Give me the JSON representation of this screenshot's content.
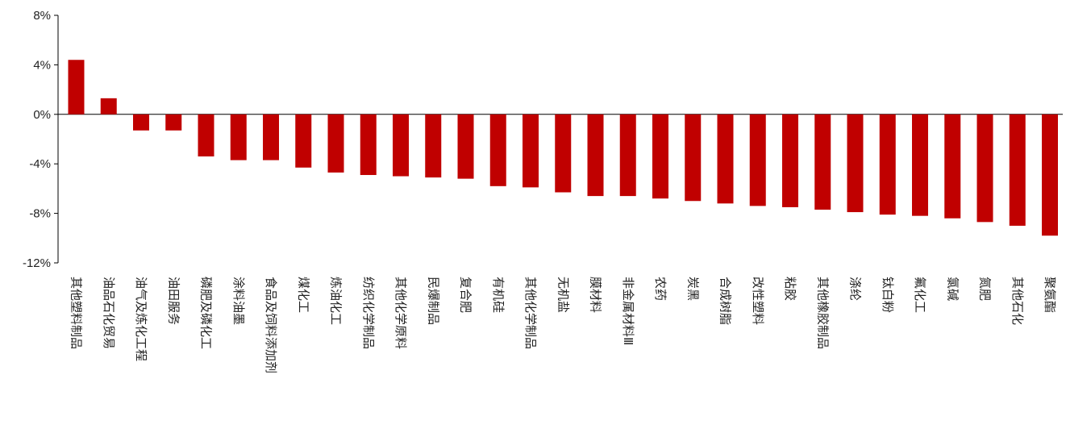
{
  "chart_data": {
    "type": "bar",
    "title": "",
    "xlabel": "",
    "ylabel": "",
    "ylim": [
      -12,
      8
    ],
    "yticks": [
      8,
      4,
      0,
      -4,
      -8,
      -12
    ],
    "ytick_labels": [
      "8%",
      "4%",
      "0%",
      "-4%",
      "-8%",
      "-12%"
    ],
    "bar_color": "#C00000",
    "grid": false,
    "legend": "none",
    "categories": [
      "其他塑料制品",
      "油品石化贸易",
      "油气及炼化工程",
      "油田服务",
      "磷肥及磷化工",
      "涂料油墨",
      "食品及饲料添加剂",
      "煤化工",
      "炼油化工",
      "纺织化学制品",
      "其他化学原料",
      "民爆制品",
      "复合肥",
      "有机硅",
      "其他化学制品",
      "无机盐",
      "膜材料",
      "非金属材料Ⅲ",
      "农药",
      "炭黑",
      "合成树脂",
      "改性塑料",
      "粘胶",
      "其他橡胶制品",
      "涤纶",
      "钛白粉",
      "氟化工",
      "氯碱",
      "氮肥",
      "其他石化",
      "聚氨酯"
    ],
    "values": [
      4.4,
      1.3,
      -1.3,
      -1.3,
      -3.4,
      -3.7,
      -3.7,
      -4.3,
      -4.7,
      -4.9,
      -5.0,
      -5.1,
      -5.2,
      -5.8,
      -5.9,
      -6.3,
      -6.6,
      -6.6,
      -6.8,
      -7.0,
      -7.2,
      -7.4,
      -7.5,
      -7.7,
      -7.9,
      -8.1,
      -8.2,
      -8.4,
      -8.7,
      -9.0,
      -9.8
    ]
  }
}
